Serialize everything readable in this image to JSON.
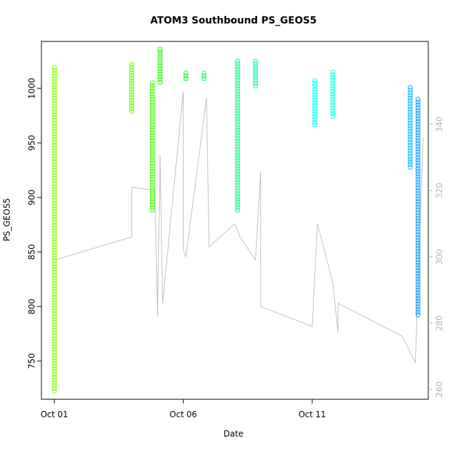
{
  "chart_data": {
    "type": "scatter",
    "title": "ATOM3 Southbound PS_GEOS5",
    "xlabel": "Date",
    "ylabel": "PS_GEOS5",
    "x_unit": "days since Oct 01",
    "xlim": [
      -0.5,
      14.5
    ],
    "ylim": [
      715,
      1043
    ],
    "y_ticks": [
      750,
      800,
      850,
      900,
      950,
      1000
    ],
    "x_ticks": [
      {
        "value": 0,
        "label": "Oct 01"
      },
      {
        "value": 5,
        "label": "Oct 06"
      },
      {
        "value": 10,
        "label": "Oct 11"
      }
    ],
    "y2lim": [
      257,
      365
    ],
    "y2_ticks": [
      260,
      280,
      300,
      320,
      340
    ],
    "grid": false,
    "series": [
      {
        "color": "#80ff00",
        "x": 0.0,
        "y_min": 722,
        "y_max": 1019
      },
      {
        "color": "#5cff00",
        "x": 3.0,
        "y_min": 977,
        "y_max": 1022
      },
      {
        "color": "#40ff00",
        "x": 3.8,
        "y_min": 888,
        "y_max": 1005
      },
      {
        "color": "#22ff00",
        "x": 4.1,
        "y_min": 1005,
        "y_max": 1036
      },
      {
        "color": "#00ff1a",
        "x": 5.1,
        "y_min": 1008,
        "y_max": 1014
      },
      {
        "color": "#00ff4d",
        "x": 5.8,
        "y_min": 1008,
        "y_max": 1014
      },
      {
        "color": "#00ff80",
        "x": 7.1,
        "y_min": 886,
        "y_max": 1025
      },
      {
        "color": "#00ff99",
        "x": 7.8,
        "y_min": 1000,
        "y_max": 1025
      },
      {
        "color": "#00ffee",
        "x": 10.1,
        "y_min": 966,
        "y_max": 1007
      },
      {
        "color": "#00ffdd",
        "x": 10.8,
        "y_min": 973,
        "y_max": 1015
      },
      {
        "color": "#00b3ff",
        "x": 13.8,
        "y_min": 926,
        "y_max": 1001
      },
      {
        "color": "#0099ff",
        "x": 14.1,
        "y_min": 792,
        "y_max": 990
      }
    ],
    "secondary_line": {
      "color": "#c0c0c0",
      "axis": "right",
      "x": [
        0.0,
        3.0,
        3.0,
        3.9,
        4.0,
        4.1,
        4.2,
        5.0,
        5.0,
        5.1,
        5.9,
        6.0,
        7.0,
        7.2,
        7.8,
        8.0,
        8.0,
        10.0,
        10.2,
        10.8,
        11.0,
        11.0,
        13.5,
        14.0,
        14.3
      ],
      "y": [
        299,
        306,
        321,
        320,
        282,
        331,
        286,
        350,
        302,
        300,
        348,
        303,
        310,
        306,
        299,
        326,
        285,
        279,
        310,
        292,
        277,
        286,
        276,
        268,
        336
      ]
    }
  }
}
